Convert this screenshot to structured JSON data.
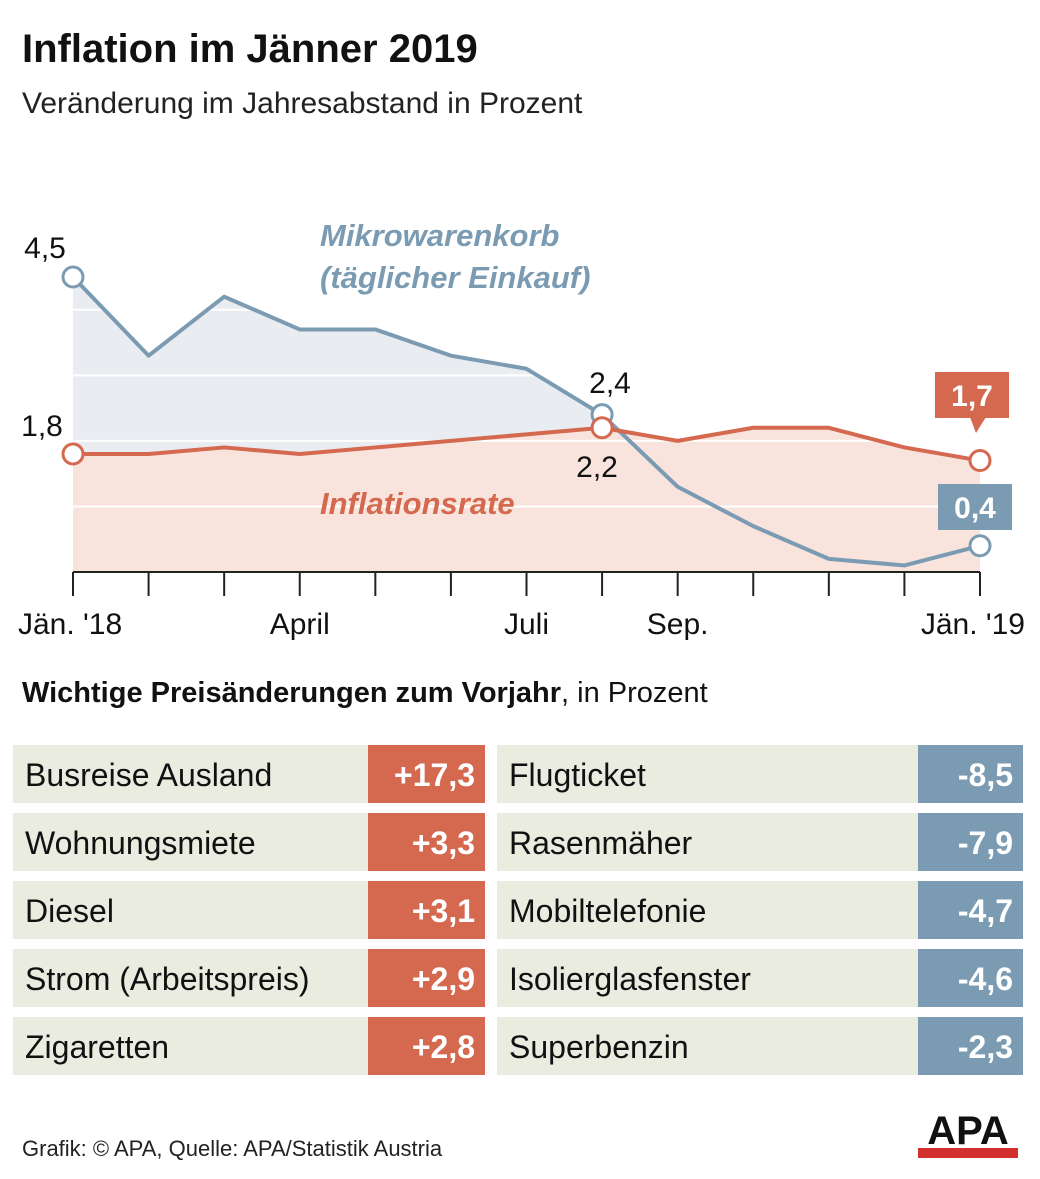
{
  "header": {
    "title": "Inflation im Jänner 2019",
    "subtitle": "Veränderung im Jahresabstand in Prozent"
  },
  "chart_data": {
    "type": "line",
    "categories": [
      "Jän. '18",
      null,
      null,
      "April",
      null,
      null,
      "Juli",
      null,
      "Sep.",
      null,
      null,
      null,
      "Jän. '19"
    ],
    "series": [
      {
        "name": "Mikrowarenkorb (täglicher Einkauf)",
        "color": "#7b9bb3",
        "area_color": "#e9ecf0",
        "values": [
          4.5,
          3.3,
          4.2,
          3.7,
          3.7,
          3.3,
          3.1,
          2.4,
          1.3,
          0.7,
          0.2,
          0.1,
          0.4
        ],
        "value_labels": [
          "4,5",
          null,
          null,
          null,
          null,
          null,
          null,
          "2,4",
          null,
          null,
          null,
          null,
          "0,4"
        ]
      },
      {
        "name": "Inflationsrate",
        "color": "#d4694f",
        "area_color": "#f8e4dc",
        "values": [
          1.8,
          1.8,
          1.9,
          1.8,
          1.9,
          2.0,
          2.1,
          2.2,
          2.0,
          2.2,
          2.2,
          1.9,
          1.7
        ],
        "value_labels": [
          "1,8",
          null,
          null,
          null,
          null,
          null,
          null,
          "2,2",
          null,
          null,
          null,
          null,
          "1,7"
        ]
      }
    ],
    "ylim": [
      0,
      4.5
    ],
    "yticks": [
      0,
      1,
      2,
      3,
      4
    ],
    "grid": true
  },
  "price_changes": {
    "title": "Wichtige Preisänderungen zum Vorjahr",
    "unit": ", in Prozent",
    "rising": [
      {
        "item": "Busreise Ausland",
        "change": "+17,3"
      },
      {
        "item": "Wohnungsmiete",
        "change": "+3,3"
      },
      {
        "item": "Diesel",
        "change": "+3,1"
      },
      {
        "item": "Strom (Arbeitspreis)",
        "change": "+2,9"
      },
      {
        "item": "Zigaretten",
        "change": "+2,8"
      }
    ],
    "falling": [
      {
        "item": "Flugticket",
        "change": "-8,5"
      },
      {
        "item": "Rasenmäher",
        "change": "-7,9"
      },
      {
        "item": "Mobiltelefonie",
        "change": "-4,7"
      },
      {
        "item": "Isolierglasfenster",
        "change": "-4,6"
      },
      {
        "item": "Superbenzin",
        "change": "-2,3"
      }
    ]
  },
  "footer": {
    "source": "Grafik: © APA, Quelle: APA/Statistik Austria",
    "logo": "APA"
  }
}
